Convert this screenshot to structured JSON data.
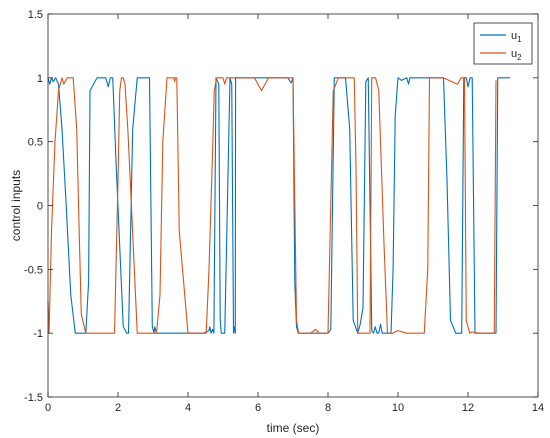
{
  "chart_data": {
    "type": "line",
    "title": "",
    "xlabel": "time (sec)",
    "ylabel": "control inputs",
    "xlim": [
      0,
      14
    ],
    "ylim": [
      -1.5,
      1.5
    ],
    "xticks": [
      0,
      2,
      4,
      6,
      8,
      10,
      12,
      14
    ],
    "yticks": [
      -1.5,
      -1,
      -0.5,
      0,
      0.5,
      1,
      1.5
    ],
    "xtick_labels": [
      "0",
      "2",
      "4",
      "6",
      "8",
      "10",
      "12",
      "14"
    ],
    "ytick_labels": [
      "-1.5",
      "-1",
      "-0.5",
      "0",
      "0.5",
      "1",
      "1.5"
    ],
    "grid": false,
    "legend_position": "top-right",
    "series": [
      {
        "name": "u1",
        "legend_base": "u",
        "legend_sub": "1",
        "color": "#0072BD",
        "x": [
          0,
          0.05,
          0.1,
          0.15,
          0.22,
          0.3,
          0.4,
          0.52,
          0.65,
          0.78,
          1.0,
          1.08,
          1.16,
          1.2,
          1.4,
          1.65,
          1.72,
          1.78,
          1.85,
          1.95,
          2.15,
          2.25,
          2.3,
          2.42,
          2.55,
          2.7,
          2.9,
          2.98,
          3.03,
          3.05,
          3.1,
          3.3,
          3.6,
          3.9,
          4.2,
          4.45,
          4.6,
          4.62,
          4.66,
          4.7,
          4.74,
          4.8,
          4.88,
          4.92,
          4.95,
          5.05,
          5.2,
          5.25,
          5.3,
          5.32,
          5.35,
          5.36,
          5.7,
          6.0,
          6.3,
          6.6,
          6.85,
          6.95,
          7.0,
          7.05,
          7.1,
          7.15,
          7.4,
          7.7,
          8.0,
          8.08,
          8.18,
          8.28,
          8.38,
          8.5,
          8.62,
          8.72,
          8.85,
          8.92,
          9.0,
          9.08,
          9.15,
          9.25,
          9.3,
          9.35,
          9.4,
          9.45,
          9.5,
          9.55,
          9.7,
          9.8,
          9.86,
          9.92,
          10.0,
          10.1,
          10.25,
          10.3,
          10.34,
          10.38,
          10.6,
          10.9,
          11.15,
          11.3,
          11.4,
          11.5,
          11.65,
          11.75,
          11.82,
          11.88,
          11.95,
          12.0,
          12.06,
          12.12,
          12.2,
          12.5,
          12.8,
          12.85,
          12.9,
          13.0,
          13.2
        ],
        "values": [
          1.0,
          0.95,
          1.0,
          0.97,
          1.0,
          0.95,
          0.6,
          0.0,
          -0.7,
          -1.0,
          -1.0,
          -1.0,
          -0.6,
          0.9,
          1.0,
          1.0,
          0.93,
          1.0,
          1.0,
          0.3,
          -0.95,
          -1.0,
          -1.0,
          0.6,
          1.0,
          1.0,
          1.0,
          -0.95,
          -1.0,
          -0.95,
          -1.0,
          -1.0,
          -1.0,
          -1.0,
          -1.0,
          -1.0,
          -0.98,
          -0.95,
          -1.0,
          -0.97,
          -1.0,
          1.0,
          0.95,
          -0.9,
          -1.0,
          -1.0,
          1.0,
          0.95,
          -1.0,
          -0.95,
          -1.0,
          1.0,
          1.0,
          1.0,
          1.0,
          1.0,
          1.0,
          0.96,
          1.0,
          -0.6,
          -0.95,
          -1.0,
          -1.0,
          -1.0,
          -1.0,
          -0.97,
          1.0,
          1.0,
          1.0,
          1.0,
          0.6,
          -0.9,
          -1.0,
          -0.93,
          -0.8,
          0.97,
          1.0,
          -0.98,
          -1.0,
          -0.95,
          -1.0,
          -1.0,
          -0.93,
          -1.0,
          -1.0,
          -1.0,
          -0.5,
          0.7,
          1.0,
          0.98,
          1.0,
          0.95,
          1.0,
          1.0,
          1.0,
          1.0,
          1.0,
          1.0,
          0.2,
          -0.9,
          -1.0,
          -1.0,
          -1.0,
          1.0,
          1.0,
          0.93,
          1.0,
          1.0,
          -1.0,
          -1.0,
          -1.0,
          1.0,
          1.0,
          1.0,
          1.0
        ]
      },
      {
        "name": "u2",
        "legend_base": "u",
        "legend_sub": "2",
        "color": "#D95319",
        "x": [
          0,
          0.03,
          0.1,
          0.2,
          0.3,
          0.4,
          0.45,
          0.55,
          0.6,
          0.72,
          0.82,
          0.9,
          0.95,
          1.08,
          1.3,
          1.6,
          1.9,
          2.0,
          2.05,
          2.1,
          2.15,
          2.2,
          2.28,
          2.35,
          2.55,
          2.8,
          3.1,
          3.2,
          3.28,
          3.4,
          3.6,
          3.62,
          3.64,
          3.68,
          3.75,
          4.0,
          4.4,
          4.52,
          4.6,
          4.7,
          4.75,
          4.82,
          5.0,
          5.05,
          5.1,
          5.2,
          5.5,
          5.9,
          6.0,
          6.1,
          6.3,
          6.4,
          6.6,
          6.8,
          7.0,
          7.1,
          7.16,
          7.2,
          7.35,
          7.5,
          7.65,
          7.75,
          7.8,
          7.95,
          8.0,
          8.15,
          8.3,
          8.6,
          8.75,
          8.8,
          8.85,
          9.0,
          9.2,
          9.25,
          9.3,
          9.36,
          9.45,
          9.6,
          9.7,
          9.8,
          9.85,
          10.0,
          10.25,
          10.5,
          10.75,
          10.85,
          10.9,
          11.0,
          11.1,
          11.3,
          11.7,
          11.8,
          11.9,
          11.95,
          12.05,
          12.1,
          12.3,
          12.75,
          12.8
        ],
        "values": [
          -0.75,
          -1.0,
          -0.2,
          0.5,
          0.9,
          1.0,
          0.95,
          1.0,
          1.0,
          1.0,
          0.6,
          -0.3,
          -0.85,
          -1.0,
          -1.0,
          -1.0,
          -1.0,
          0.2,
          0.9,
          1.0,
          1.0,
          0.95,
          0.6,
          0.2,
          -1.0,
          -1.0,
          -1.0,
          -0.7,
          0.5,
          1.0,
          1.0,
          0.97,
          1.0,
          1.0,
          -0.2,
          -1.0,
          -1.0,
          -1.0,
          -0.5,
          0.4,
          0.9,
          1.0,
          1.0,
          0.95,
          1.0,
          1.0,
          1.0,
          1.0,
          0.95,
          0.9,
          1.0,
          1.0,
          1.0,
          1.0,
          1.0,
          -0.9,
          -1.0,
          -1.0,
          -1.0,
          -1.0,
          -0.97,
          -1.0,
          -1.0,
          -1.0,
          -1.0,
          0.9,
          1.0,
          1.0,
          1.0,
          0.3,
          -1.0,
          -1.0,
          -1.0,
          1.0,
          1.0,
          1.0,
          0.9,
          -0.3,
          -1.0,
          -1.0,
          -1.0,
          -0.98,
          -1.0,
          -1.0,
          -1.0,
          -0.5,
          1.0,
          1.0,
          1.0,
          1.0,
          0.95,
          1.0,
          1.0,
          -0.9,
          -1.0,
          -0.99,
          -1.0,
          -1.0,
          0.98
        ]
      }
    ]
  }
}
